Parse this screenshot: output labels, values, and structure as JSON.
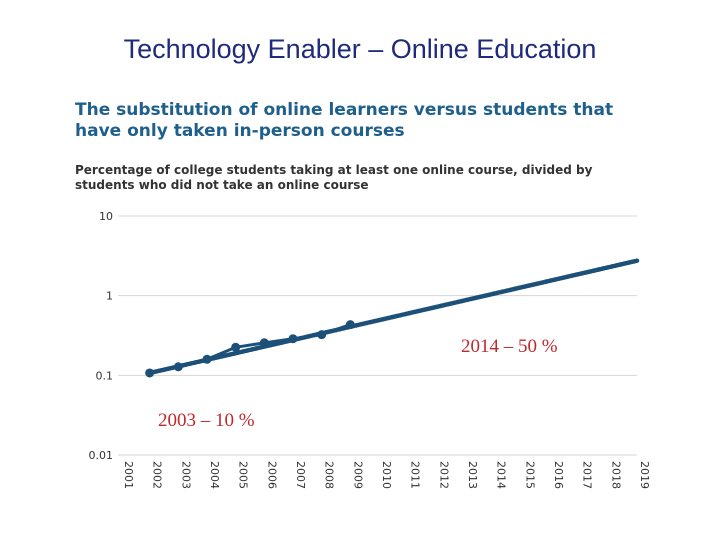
{
  "slide": {
    "title": "Technology Enabler – Online Education"
  },
  "chart_data": {
    "type": "line",
    "title": "The substitution of online learners versus students that have only taken in-person courses",
    "subtitle": "Percentage of college students taking at least one online course, divided by students who did not take an online course",
    "y_scale": "log",
    "ylim": [
      0.01,
      10
    ],
    "y_ticks": [
      "0.01",
      "0.1",
      "1",
      "10"
    ],
    "y_tick_values": [
      0.01,
      0.1,
      1,
      10
    ],
    "x_ticks": [
      "2001",
      "2002",
      "2003",
      "2004",
      "2005",
      "2006",
      "2007",
      "2008",
      "2009",
      "2010",
      "2011",
      "2012",
      "2013",
      "2014",
      "2015",
      "2016",
      "2017",
      "2018",
      "2019"
    ],
    "x_range": [
      2001,
      2019
    ],
    "grid": true,
    "series": [
      {
        "color": "#1c5079",
        "points": [
          {
            "x": 2002,
            "y": 0.107
          },
          {
            "x": 2003,
            "y": 0.128
          },
          {
            "x": 2004,
            "y": 0.159
          },
          {
            "x": 2005,
            "y": 0.225
          },
          {
            "x": 2006,
            "y": 0.256
          },
          {
            "x": 2007,
            "y": 0.288
          },
          {
            "x": 2008,
            "y": 0.324
          },
          {
            "x": 2009,
            "y": 0.433
          }
        ]
      },
      {
        "color": "#1c5079",
        "style": "projection",
        "points": [
          {
            "x": 2002,
            "y": 0.107
          },
          {
            "x": 2019,
            "y": 2.75
          }
        ]
      }
    ],
    "annotations": [
      {
        "id": "a2014",
        "text": "2014 – 50 %",
        "color": "#c0282d"
      },
      {
        "id": "a2003",
        "text": "2003 – 10 %",
        "color": "#c0282d"
      }
    ]
  }
}
